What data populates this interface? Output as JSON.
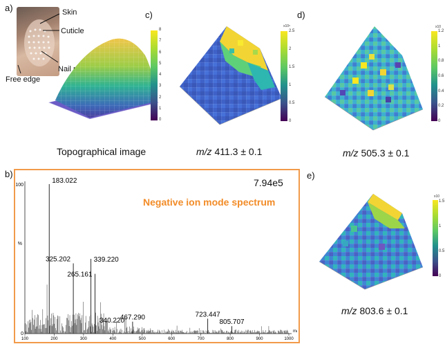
{
  "panels": {
    "a": {
      "label": "a)",
      "annotations": [
        "Skin",
        "Cuticle",
        "Nail plate",
        "Free edge"
      ],
      "caption": "Topographical image",
      "colorbar_ticks": [
        "8",
        "7",
        "6",
        "5",
        "4",
        "3",
        "2",
        "1",
        "0"
      ]
    },
    "c": {
      "label": "c)",
      "mz": "m/z",
      "caption_value": " 411.3 ± 0.1",
      "colorbar_exponent": "x10⁶",
      "colorbar_ticks": [
        "2.5",
        "2",
        "1.5",
        "1",
        "0.5",
        "0"
      ]
    },
    "d": {
      "label": "d)",
      "mz": "m/z",
      "caption_value": " 505.3 ± 0.1",
      "colorbar_exponent": "x10",
      "colorbar_ticks": [
        "1.2",
        "1",
        "0.8",
        "0.6",
        "0.4",
        "0.2",
        "0"
      ]
    },
    "e": {
      "label": "e)",
      "mz": "m/z",
      "caption_value": " 803.6 ± 0.1",
      "colorbar_exponent": "x10",
      "colorbar_ticks": [
        "1.5",
        "1",
        "0.5",
        "0"
      ]
    }
  },
  "spectrum": {
    "label": "b)",
    "title": "Negative ion mode spectrum",
    "intensity": "7.94e5",
    "title_color": "#f28c28",
    "border_color": "#f29a4a",
    "y_label": "%",
    "y_ticks": [
      "100",
      "0"
    ],
    "x_unit": "m/z",
    "x_ticks": [
      "100",
      "200",
      "300",
      "400",
      "500",
      "600",
      "700",
      "800",
      "900",
      "1000"
    ],
    "peaks": [
      {
        "mz": 183.022,
        "label": "183.022"
      },
      {
        "mz": 325.202,
        "label": "325.202"
      },
      {
        "mz": 339.22,
        "label": "339.220"
      },
      {
        "mz": 265.161,
        "label": "265.161"
      },
      {
        "mz": 340.22,
        "label": "340.220"
      },
      {
        "mz": 467.29,
        "label": "467.290"
      },
      {
        "mz": 723.447,
        "label": "723.447"
      },
      {
        "mz": 805.707,
        "label": "805.707"
      }
    ]
  },
  "chart_data": {
    "type": "bar",
    "title": "Negative ion mode spectrum",
    "xlabel": "m/z",
    "ylabel": "%",
    "xlim": [
      100,
      1000
    ],
    "ylim": [
      0,
      100
    ],
    "x": [
      183.022,
      265.161,
      325.202,
      339.22,
      340.22,
      467.29,
      723.447,
      805.707
    ],
    "values": [
      100,
      47,
      50,
      40,
      14,
      8,
      10,
      5
    ]
  }
}
